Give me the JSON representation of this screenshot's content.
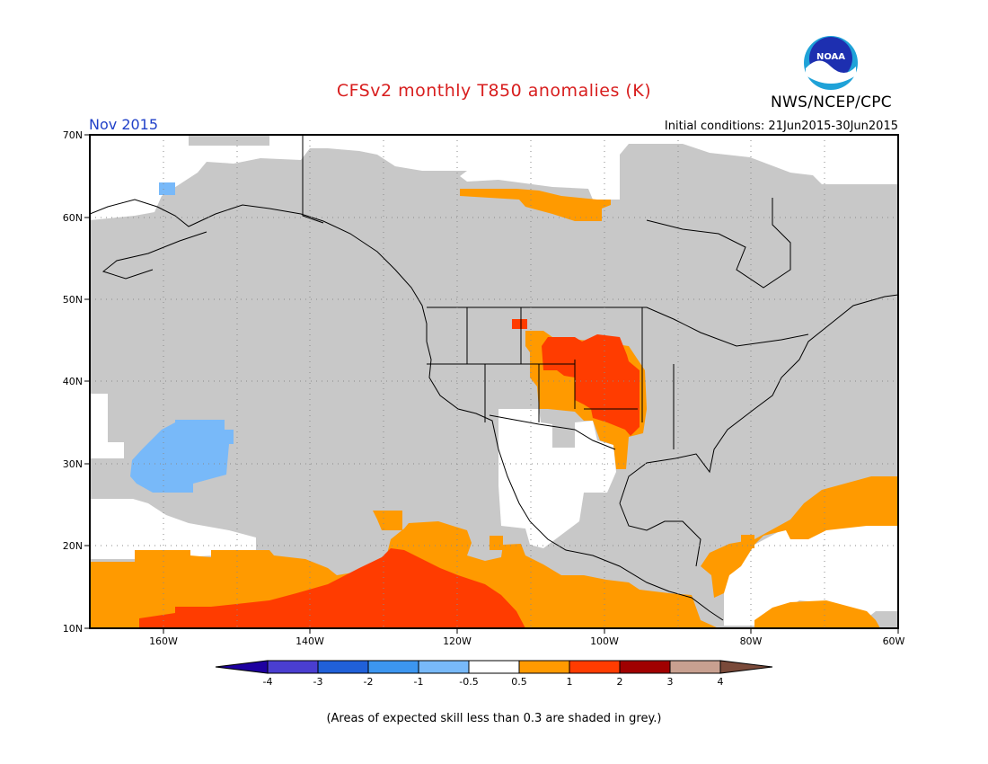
{
  "title": "CFSv2 monthly T850 anomalies (K)",
  "organization": "NWS/NCEP/CPC",
  "logo_text": "NOAA",
  "month_label": "Nov 2015",
  "initial_conditions": "Initial conditions: 21Jun2015-30Jun2015",
  "footnote": "(Areas of expected skill less than 0.3 are shaded in grey.)",
  "map": {
    "lon_range": [
      -170,
      -60
    ],
    "lat_range": [
      10,
      70
    ],
    "lat_labels": [
      "70N",
      "60N",
      "50N",
      "40N",
      "30N",
      "20N",
      "10N"
    ],
    "lon_labels": [
      "160W",
      "140W",
      "120W",
      "100W",
      "80W",
      "60W"
    ],
    "colors": {
      "low_skill_grey": "#c8c8c8",
      "near_zero_white": "#ffffff",
      "pos_0_5_to_1": "#ff9a00",
      "pos_1_to_2": "#ff3c00",
      "neg_0_5_to_1": "#78b9f9"
    }
  },
  "colorbar": {
    "colors": [
      "#1e00a0",
      "#4a3ed0",
      "#2060d8",
      "#3c96f0",
      "#78b9f9",
      "#ffffff",
      "#ff9a00",
      "#ff3c00",
      "#a00000",
      "#c8a090",
      "#7a4a3a"
    ],
    "labels": [
      "-4",
      "-3",
      "-2",
      "-1",
      "-0.5",
      "0.5",
      "1",
      "2",
      "3",
      "4"
    ]
  }
}
